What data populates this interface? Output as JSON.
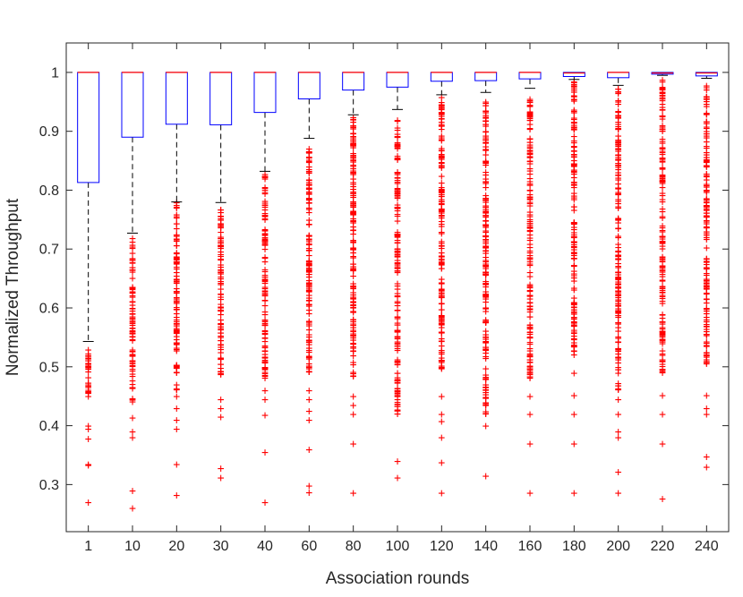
{
  "chart_data": {
    "type": "box",
    "title": "",
    "xlabel": "Association rounds",
    "ylabel": "Normalized Throughput",
    "categories": [
      "1",
      "10",
      "20",
      "30",
      "40",
      "60",
      "80",
      "100",
      "120",
      "140",
      "160",
      "180",
      "200",
      "220",
      "240"
    ],
    "ylim": [
      0.22,
      1.05
    ],
    "yticks": [
      0.3,
      0.4,
      0.5,
      0.6,
      0.7,
      0.8,
      0.9,
      1
    ],
    "ytick_labels": [
      "0.3",
      "0.4",
      "0.5",
      "0.6",
      "0.7",
      "0.8",
      "0.9",
      "1"
    ],
    "grid": false,
    "box_color": "#0000ff",
    "median_color": "#ff0000",
    "whisker_color": "#000000",
    "outlier_color": "#ff0000",
    "outlier_marker": "+",
    "boxes": [
      {
        "q1": 0.813,
        "median": 1.0,
        "q3": 1.0,
        "whisker_low": 0.543,
        "whisker_high": 1.0,
        "outlier_band": [
          0.44,
          0.53
        ],
        "outliers": [
          0.4,
          0.395,
          0.378,
          0.335,
          0.333,
          0.27
        ]
      },
      {
        "q1": 0.89,
        "median": 1.0,
        "q3": 1.0,
        "whisker_low": 0.727,
        "whisker_high": 1.0,
        "outlier_band": [
          0.44,
          0.72
        ],
        "outliers": [
          0.414,
          0.39,
          0.38,
          0.29,
          0.26
        ]
      },
      {
        "q1": 0.912,
        "median": 1.0,
        "q3": 1.0,
        "whisker_low": 0.78,
        "whisker_high": 1.0,
        "outlier_band": [
          0.46,
          0.78
        ],
        "outliers": [
          0.45,
          0.43,
          0.41,
          0.395,
          0.335,
          0.282
        ]
      },
      {
        "q1": 0.911,
        "median": 1.0,
        "q3": 1.0,
        "whisker_low": 0.779,
        "whisker_high": 1.0,
        "outlier_band": [
          0.48,
          0.77
        ],
        "outliers": [
          0.445,
          0.43,
          0.415,
          0.328,
          0.312
        ]
      },
      {
        "q1": 0.932,
        "median": 1.0,
        "q3": 1.0,
        "whisker_low": 0.832,
        "whisker_high": 1.0,
        "outlier_band": [
          0.48,
          0.83
        ],
        "outliers": [
          0.46,
          0.445,
          0.418,
          0.355,
          0.27
        ]
      },
      {
        "q1": 0.955,
        "median": 1.0,
        "q3": 1.0,
        "whisker_low": 0.888,
        "whisker_high": 1.0,
        "outlier_band": [
          0.49,
          0.88
        ],
        "outliers": [
          0.46,
          0.445,
          0.425,
          0.41,
          0.36,
          0.298,
          0.287
        ]
      },
      {
        "q1": 0.97,
        "median": 1.0,
        "q3": 1.0,
        "whisker_low": 0.928,
        "whisker_high": 1.0,
        "outlier_band": [
          0.48,
          0.925
        ],
        "outliers": [
          0.45,
          0.435,
          0.42,
          0.37,
          0.286
        ]
      },
      {
        "q1": 0.975,
        "median": 1.0,
        "q3": 1.0,
        "whisker_low": 0.937,
        "whisker_high": 1.0,
        "outlier_band": [
          0.42,
          0.935
        ],
        "outliers": [
          0.34,
          0.312
        ]
      },
      {
        "q1": 0.985,
        "median": 1.0,
        "q3": 1.0,
        "whisker_low": 0.962,
        "whisker_high": 1.0,
        "outlier_band": [
          0.49,
          0.96
        ],
        "outliers": [
          0.45,
          0.42,
          0.408,
          0.38,
          0.338,
          0.286
        ]
      },
      {
        "q1": 0.986,
        "median": 1.0,
        "q3": 1.0,
        "whisker_low": 0.966,
        "whisker_high": 1.0,
        "outlier_band": [
          0.42,
          0.965
        ],
        "outliers": [
          0.4,
          0.315
        ]
      },
      {
        "q1": 0.989,
        "median": 1.0,
        "q3": 1.0,
        "whisker_low": 0.973,
        "whisker_high": 1.0,
        "outlier_band": [
          0.48,
          0.97
        ],
        "outliers": [
          0.45,
          0.42,
          0.37,
          0.286
        ]
      },
      {
        "q1": 0.993,
        "median": 0.999,
        "q3": 1.0,
        "whisker_low": 0.988,
        "whisker_high": 1.0,
        "outlier_band": [
          0.52,
          0.985
        ],
        "outliers": [
          0.49,
          0.452,
          0.42,
          0.37,
          0.286
        ]
      },
      {
        "q1": 0.991,
        "median": 1.0,
        "q3": 1.0,
        "whisker_low": 0.978,
        "whisker_high": 1.0,
        "outlier_band": [
          0.46,
          0.975
        ],
        "outliers": [
          0.445,
          0.42,
          0.39,
          0.38,
          0.322,
          0.286
        ]
      },
      {
        "q1": 0.997,
        "median": 0.999,
        "q3": 1.0,
        "whisker_low": 0.995,
        "whisker_high": 1.0,
        "outlier_band": [
          0.49,
          0.99
        ],
        "outliers": [
          0.452,
          0.42,
          0.37,
          0.276
        ]
      },
      {
        "q1": 0.994,
        "median": 0.999,
        "q3": 1.0,
        "whisker_low": 0.99,
        "whisker_high": 1.0,
        "outlier_band": [
          0.5,
          0.985
        ],
        "outliers": [
          0.452,
          0.43,
          0.42,
          0.348,
          0.33
        ]
      }
    ]
  }
}
